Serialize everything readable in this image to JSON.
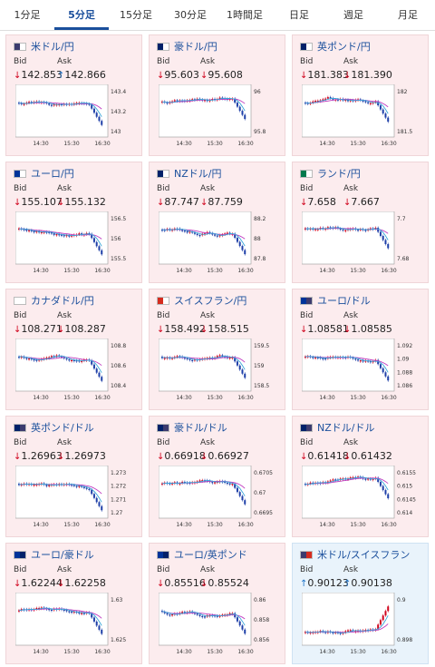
{
  "tabs": [
    {
      "label": "1分足",
      "active": false
    },
    {
      "label": "5分足",
      "active": true
    },
    {
      "label": "15分足",
      "active": false
    },
    {
      "label": "30分足",
      "active": false
    },
    {
      "label": "1時間足",
      "active": false
    },
    {
      "label": "日足",
      "active": false
    },
    {
      "label": "週足",
      "active": false
    },
    {
      "label": "月足",
      "active": false
    }
  ],
  "bid_label": "Bid",
  "ask_label": "Ask",
  "colors": {
    "down": "#d0021b",
    "up": "#1e73c8",
    "link": "#1a4f9c",
    "ma1": "#c03cc0",
    "ma2": "#3aa7d9"
  },
  "cards": [
    {
      "name": "米ドル/円",
      "flag": "us-jp-flag-icon",
      "bid": "142.853",
      "ask": "142.866",
      "bid_dir": "down",
      "ask_dir": "up",
      "yticks": [
        "143.4",
        "143.2",
        "143"
      ],
      "xticks": [
        "14:30",
        "15:30",
        "16:30"
      ],
      "bg": "pink"
    },
    {
      "name": "豪ドル/円",
      "flag": "au-jp-flag-icon",
      "bid": "95.603",
      "ask": "95.608",
      "bid_dir": "down",
      "ask_dir": "down",
      "yticks": [
        "96",
        "95.8"
      ],
      "xticks": [
        "14:30",
        "15:30",
        "16:30"
      ],
      "bg": "pink"
    },
    {
      "name": "英ポンド/円",
      "flag": "gb-jp-flag-icon",
      "bid": "181.383",
      "ask": "181.390",
      "bid_dir": "down",
      "ask_dir": "down",
      "yticks": [
        "182",
        "181.5"
      ],
      "xticks": [
        "14:30",
        "15:30",
        "16:30"
      ],
      "bg": "pink"
    },
    {
      "name": "ユーロ/円",
      "flag": "eu-jp-flag-icon",
      "bid": "155.107",
      "ask": "155.132",
      "bid_dir": "down",
      "ask_dir": "down",
      "yticks": [
        "156.5",
        "156",
        "155.5"
      ],
      "xticks": [
        "14:30",
        "15:30",
        "16:30"
      ],
      "bg": "pink"
    },
    {
      "name": "NZドル/円",
      "flag": "nz-jp-flag-icon",
      "bid": "87.747",
      "ask": "87.759",
      "bid_dir": "down",
      "ask_dir": "down",
      "yticks": [
        "88.2",
        "88",
        "87.8"
      ],
      "xticks": [
        "14:30",
        "15:30",
        "16:30"
      ],
      "bg": "pink"
    },
    {
      "name": "ランド/円",
      "flag": "za-jp-flag-icon",
      "bid": "7.658",
      "ask": "7.667",
      "bid_dir": "down",
      "ask_dir": "down",
      "yticks": [
        "7.7",
        "7.68"
      ],
      "xticks": [
        "14:30",
        "15:30",
        "16:30"
      ],
      "bg": "pink"
    },
    {
      "name": "カナダドル/円",
      "flag": "ca-jp-flag-icon",
      "bid": "108.271",
      "ask": "108.287",
      "bid_dir": "down",
      "ask_dir": "down",
      "yticks": [
        "108.8",
        "108.6",
        "108.4"
      ],
      "xticks": [
        "14:30",
        "15:30",
        "16:30"
      ],
      "bg": "pink"
    },
    {
      "name": "スイスフラン/円",
      "flag": "ch-jp-flag-icon",
      "bid": "158.492",
      "ask": "158.515",
      "bid_dir": "down",
      "ask_dir": "down",
      "yticks": [
        "159.5",
        "159",
        "158.5"
      ],
      "xticks": [
        "14:30",
        "15:30",
        "16:30"
      ],
      "bg": "pink"
    },
    {
      "name": "ユーロ/ドル",
      "flag": "eu-us-flag-icon",
      "bid": "1.08581",
      "ask": "1.08585",
      "bid_dir": "down",
      "ask_dir": "down",
      "yticks": [
        "1.092",
        "1.09",
        "1.088",
        "1.086"
      ],
      "xticks": [
        "14:30",
        "15:30",
        "16:30"
      ],
      "bg": "pink"
    },
    {
      "name": "英ポンド/ドル",
      "flag": "gb-us-flag-icon",
      "bid": "1.26963",
      "ask": "1.26973",
      "bid_dir": "down",
      "ask_dir": "down",
      "yticks": [
        "1.273",
        "1.272",
        "1.271",
        "1.27"
      ],
      "xticks": [
        "14:30",
        "15:30",
        "16:30"
      ],
      "bg": "pink"
    },
    {
      "name": "豪ドル/ドル",
      "flag": "au-us-flag-icon",
      "bid": "0.66918",
      "ask": "0.66927",
      "bid_dir": "down",
      "ask_dir": "down",
      "yticks": [
        "0.6705",
        "0.67",
        "0.6695"
      ],
      "xticks": [
        "14:30",
        "15:30",
        "16:30"
      ],
      "bg": "pink"
    },
    {
      "name": "NZドル/ドル",
      "flag": "nz-us-flag-icon",
      "bid": "0.61418",
      "ask": "0.61432",
      "bid_dir": "down",
      "ask_dir": "down",
      "yticks": [
        "0.6155",
        "0.615",
        "0.6145",
        "0.614"
      ],
      "xticks": [
        "14:30",
        "15:30",
        "16:30"
      ],
      "bg": "pink"
    },
    {
      "name": "ユーロ/豪ドル",
      "flag": "eu-au-flag-icon",
      "bid": "1.62244",
      "ask": "1.62258",
      "bid_dir": "down",
      "ask_dir": "down",
      "yticks": [
        "1.63",
        "1.625"
      ],
      "xticks": [
        "14:30",
        "15:30",
        "16:30"
      ],
      "bg": "pink"
    },
    {
      "name": "ユーロ/英ポンド",
      "flag": "eu-gb-flag-icon",
      "bid": "0.85516",
      "ask": "0.85524",
      "bid_dir": "down",
      "ask_dir": "down",
      "yticks": [
        "0.86",
        "0.858",
        "0.856"
      ],
      "xticks": [
        "14:30",
        "15:30",
        "16:30"
      ],
      "bg": "pink"
    },
    {
      "name": "米ドル/スイスフラン",
      "flag": "us-ch-flag-icon",
      "bid": "0.90123",
      "ask": "0.90138",
      "bid_dir": "up",
      "ask_dir": "up",
      "yticks": [
        "0.9",
        "0.898"
      ],
      "xticks": [
        "14:30",
        "15:30",
        "16:30"
      ],
      "bg": "blue"
    }
  ]
}
